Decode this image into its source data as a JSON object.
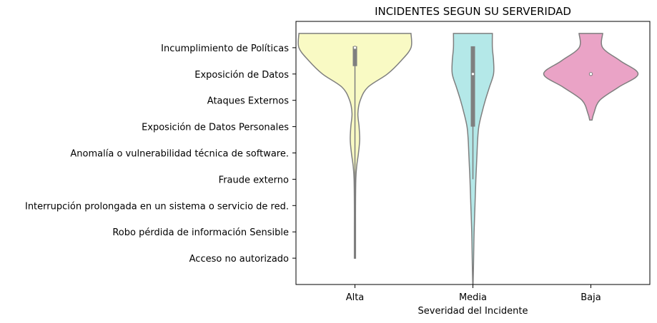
{
  "chart_data": {
    "type": "violin",
    "title": "INCIDENTES SEGUN SU SERVERIDAD",
    "xlabel": "Severidad del Incidente",
    "ylabel": "",
    "categories": [
      "Alta",
      "Media",
      "Baja"
    ],
    "y_categories": [
      "Incumplimiento de Políticas",
      "Exposición de Datos",
      "Ataques Externos",
      "Exposición de Datos Personales",
      "Anomalía o vulnerabilidad técnica de software.",
      "Fraude externo",
      "Interrupción prolongada en un sistema o servicio de red.",
      "Robo pérdida de información Sensible",
      "Acceso no autorizado"
    ],
    "series": [
      {
        "category": "Alta",
        "color": "#f9fac4",
        "median": 0,
        "q1": 0,
        "q3": 0.7,
        "whisker_low": 0,
        "whisker_high": 8,
        "density": [
          [
            0,
            0.95
          ],
          [
            0.5,
            0.78
          ],
          [
            1,
            0.55
          ],
          [
            1.5,
            0.22
          ],
          [
            2,
            0.09
          ],
          [
            2.5,
            0.05
          ],
          [
            3,
            0.07
          ],
          [
            3.5,
            0.08
          ],
          [
            4,
            0.06
          ],
          [
            4.5,
            0.03
          ],
          [
            5,
            0.015
          ],
          [
            6,
            0.01
          ],
          [
            7,
            0.01
          ],
          [
            8,
            0.01
          ]
        ]
      },
      {
        "category": "Media",
        "color": "#b4e8e8",
        "median": 1,
        "q1": 0,
        "q3": 3,
        "whisker_low": 0,
        "whisker_high": 5,
        "density": [
          [
            0,
            0.33
          ],
          [
            0.5,
            0.35
          ],
          [
            1,
            0.35
          ],
          [
            1.5,
            0.28
          ],
          [
            2,
            0.21
          ],
          [
            2.5,
            0.15
          ],
          [
            3,
            0.1
          ],
          [
            3.5,
            0.08
          ],
          [
            4,
            0.07
          ],
          [
            4.5,
            0.06
          ],
          [
            5,
            0.05
          ],
          [
            6,
            0.035
          ],
          [
            7,
            0.02
          ],
          [
            8,
            0.012
          ],
          [
            8.5,
            0.008
          ],
          [
            9,
            0.003
          ]
        ]
      },
      {
        "category": "Baja",
        "color": "#eaa3c6",
        "median": 1,
        "q1": 1,
        "q3": 1,
        "whisker_low": 1,
        "whisker_high": 1,
        "density": [
          [
            0,
            0.2
          ],
          [
            0.5,
            0.5
          ],
          [
            1,
            0.8
          ],
          [
            1.5,
            0.47
          ],
          [
            2,
            0.15
          ],
          [
            2.5,
            0.05
          ],
          [
            2.75,
            0.02
          ]
        ]
      }
    ],
    "ylim": [
      -1,
      9
    ],
    "grid": false,
    "legend": false
  }
}
